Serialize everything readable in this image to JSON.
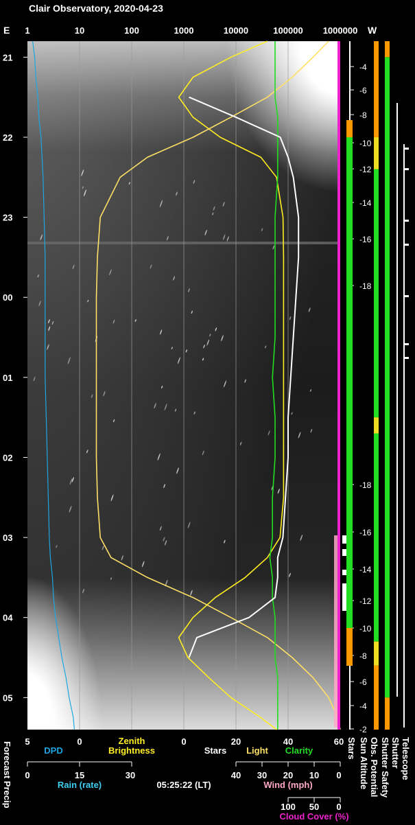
{
  "title": "Clair Observatory, 2020-04-23",
  "timestamp": "05:25:22 (LT)",
  "colors": {
    "background": "#000000",
    "white": "#ffffff",
    "dpd": "#1fa6e0",
    "rain": "#3fd0f0",
    "zenith": "#ffee22",
    "light": "#ffe066",
    "clarity": "#22dd22",
    "stars": "#ffffff",
    "wind": "#ffa8c8",
    "cloud": "#ee22cc",
    "green_bar": "#22dd22",
    "orange_bar": "#ff9900",
    "yellow_bar": "#eedd22"
  },
  "top_axis": {
    "east": "E",
    "west": "W",
    "ticks": [
      "1",
      "10",
      "100",
      "1000",
      "10000",
      "100000",
      "1000000"
    ]
  },
  "time_axis": [
    "21",
    "22",
    "23",
    "00",
    "01",
    "02",
    "03",
    "04",
    "05"
  ],
  "sun_altitude_ticks": [
    "-4",
    "-6",
    "-8",
    "-10",
    "-12",
    "-14",
    "-16",
    "-18",
    "-18",
    "-16",
    "-14",
    "-12",
    "-10",
    "-8",
    "-6",
    "-4",
    "-2"
  ],
  "bottom_axes": {
    "row1": {
      "dpd_ticks": [
        "5",
        "0"
      ],
      "dpd_label": "DPD",
      "zenith_label_1": "Zenith",
      "zenith_label_2": "Brightness",
      "stars_ticks": [
        "0",
        "20",
        "40",
        "60"
      ],
      "stars_label": "Stars",
      "light_label": "Light",
      "clarity_label": "Clarity"
    },
    "row2": {
      "rain_ticks": [
        "0",
        "15",
        "30"
      ],
      "rain_label": "Rain (rate)",
      "wind_ticks": [
        "40",
        "30",
        "20",
        "10",
        "0"
      ],
      "wind_label": "Wind (mph)"
    },
    "row3": {
      "cloud_ticks": [
        "100",
        "50",
        "0"
      ],
      "cloud_label": "Cloud Cover (%)"
    },
    "vertical_labels": [
      "Forecast Precip",
      "Stars",
      "Sun Altitude",
      "Obs. Potential",
      "Shutter Safety",
      "Shutter",
      "Telescope"
    ]
  },
  "chart_data": {
    "type": "line",
    "title": "Clair Observatory, 2020-04-23",
    "time_hours": [
      20.8,
      21.0,
      21.25,
      21.5,
      21.75,
      22.0,
      22.25,
      22.5,
      23.0,
      23.5,
      24.0,
      24.5,
      25.0,
      25.5,
      26.0,
      26.5,
      27.0,
      27.25,
      27.5,
      27.75,
      28.0,
      28.25,
      28.5,
      28.75,
      29.0,
      29.25,
      29.4
    ],
    "series": [
      {
        "name": "DPD",
        "axis": "DPD (5 to 0)",
        "values": [
          4.5,
          4.3,
          4.2,
          4.0,
          3.9,
          3.7,
          3.6,
          3.5,
          3.4,
          3.3,
          3.3,
          3.3,
          3.3,
          3.2,
          3.1,
          3.0,
          2.9,
          2.8,
          2.6,
          2.5,
          2.3,
          2.0,
          1.7,
          1.3,
          1.0,
          0.6,
          0.5
        ]
      },
      {
        "name": "Zenith Brightness",
        "axis": "log 1 to 1000000",
        "values": [
          40000,
          8000,
          1500,
          800,
          1500,
          5000,
          30000,
          60000,
          80000,
          82000,
          82000,
          82000,
          82000,
          82000,
          82000,
          82000,
          70000,
          40000,
          15000,
          4000,
          1500,
          800,
          1200,
          3000,
          8000,
          30000,
          60000
        ]
      },
      {
        "name": "Light",
        "axis": "log 1 to 1000000",
        "values": [
          600000,
          300000,
          120000,
          40000,
          8000,
          1500,
          200,
          60,
          25,
          22,
          21,
          21,
          21,
          21,
          21,
          22,
          25,
          40,
          200,
          1500,
          8000,
          40000,
          120000,
          300000,
          600000,
          900000,
          1000000
        ]
      },
      {
        "name": "Clarity",
        "axis": "0 to 60",
        "values": [
          35,
          35,
          35,
          35,
          36,
          36,
          36,
          36,
          35,
          35,
          35,
          35,
          34,
          35,
          35,
          34,
          34,
          33,
          34,
          34,
          35,
          35,
          35,
          36,
          36,
          36,
          36
        ]
      },
      {
        "name": "Stars",
        "axis": "0 to 60",
        "values": [
          null,
          null,
          null,
          2,
          20,
          37,
          40,
          42,
          44,
          44,
          43,
          42,
          41,
          40,
          40,
          39,
          38,
          36,
          36,
          35,
          25,
          5,
          2,
          null,
          null,
          null,
          null
        ]
      }
    ],
    "stars_axis_ylim": [
      0,
      60
    ],
    "log_axis_range": [
      1,
      1000000
    ],
    "grid": true
  },
  "status_bars": {
    "obs_potential": [
      {
        "from": 20.8,
        "to": 22.0,
        "color": "orange"
      },
      {
        "from": 22.0,
        "to": 22.4,
        "color": "yellow"
      },
      {
        "from": 22.4,
        "to": 25.5,
        "color": "green"
      },
      {
        "from": 25.5,
        "to": 25.7,
        "color": "yellow"
      },
      {
        "from": 25.7,
        "to": 28.3,
        "color": "green"
      },
      {
        "from": 28.3,
        "to": 28.6,
        "color": "yellow"
      },
      {
        "from": 28.6,
        "to": 29.4,
        "color": "orange"
      }
    ],
    "shutter_safety": [
      {
        "from": 20.8,
        "to": 21.0,
        "color": "orange"
      },
      {
        "from": 21.0,
        "to": 29.0,
        "color": "green"
      },
      {
        "from": 29.0,
        "to": 29.4,
        "color": "orange"
      }
    ]
  }
}
